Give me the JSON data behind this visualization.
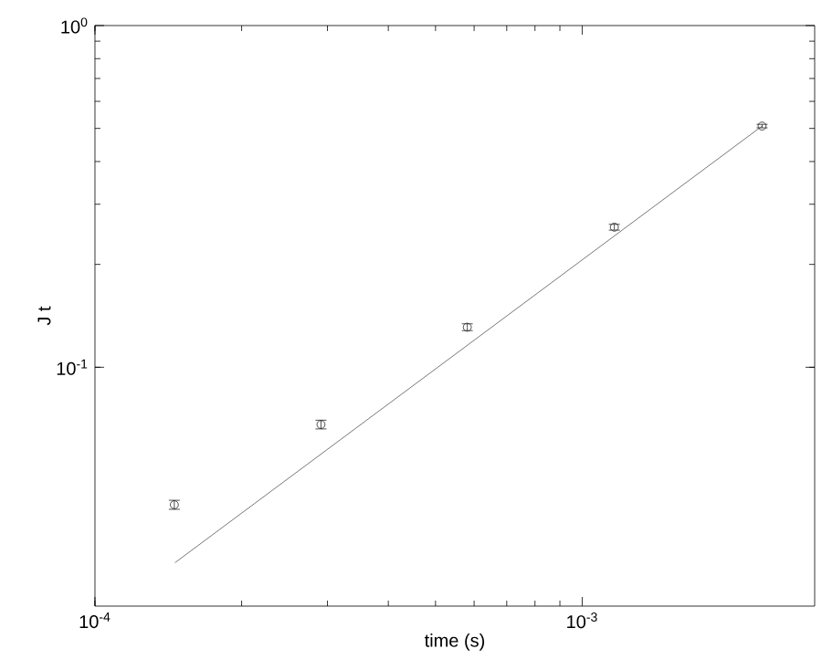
{
  "chart_data": {
    "type": "scatter",
    "xlabel": "time (s)",
    "ylabel": "J t",
    "log": "xy",
    "grid": false,
    "xlim": [
      0.0001,
      0.003
    ],
    "ylim": [
      0.02,
      1
    ],
    "xticks": [
      {
        "value": 0.0001,
        "label": "10$^{-4}$"
      },
      {
        "value": 0.001,
        "label": "10$^{-3}$"
      }
    ],
    "yticks": [
      {
        "value": 0.1,
        "label": "10$^{-1}$"
      },
      {
        "value": 1,
        "label": "10$^{0}$"
      }
    ],
    "series": [
      {
        "color": "#222222",
        "marker": "circle",
        "x": [
          0.0001455,
          0.000291,
          0.000581,
          0.001164,
          0.00234
        ],
        "values": [
          0.0396,
          0.068,
          0.131,
          0.257,
          0.508
        ],
        "errors": [
          0.0012,
          0.002,
          0.003,
          0.005,
          0.006
        ]
      },
      {
        "type": "line",
        "color": "#555555",
        "marker": "none",
        "line_style": "solid",
        "x": [
          0.000146,
          0.00234
        ],
        "values": [
          0.0268,
          0.508
        ]
      }
    ]
  }
}
